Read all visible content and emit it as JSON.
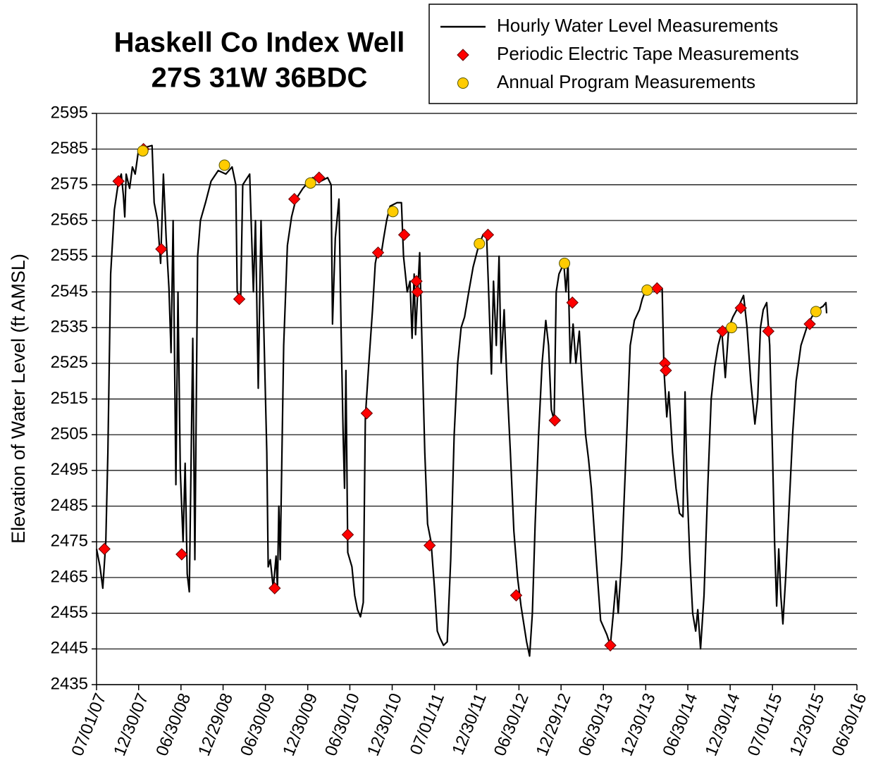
{
  "chart_data": {
    "type": "line",
    "title": [
      "Haskell Co Index Well",
      "27S 31W 36BDC"
    ],
    "y_label": "Elevation of Water Level (ft AMSL)",
    "ylim": [
      2435,
      2595
    ],
    "yticks": [
      2435,
      2445,
      2455,
      2465,
      2475,
      2485,
      2495,
      2505,
      2515,
      2525,
      2535,
      2545,
      2555,
      2565,
      2575,
      2585,
      2595
    ],
    "xlim": [
      "2007-07-01",
      "2016-06-30"
    ],
    "xticks": [
      {
        "value": "2007-07-01",
        "label": "07/01/07"
      },
      {
        "value": "2007-12-30",
        "label": "12/30/07"
      },
      {
        "value": "2008-06-30",
        "label": "06/30/08"
      },
      {
        "value": "2008-12-29",
        "label": "12/29/08"
      },
      {
        "value": "2009-06-30",
        "label": "06/30/09"
      },
      {
        "value": "2009-12-30",
        "label": "12/30/09"
      },
      {
        "value": "2010-06-30",
        "label": "06/30/10"
      },
      {
        "value": "2010-12-30",
        "label": "12/30/10"
      },
      {
        "value": "2011-07-01",
        "label": "07/01/11"
      },
      {
        "value": "2011-12-30",
        "label": "12/30/11"
      },
      {
        "value": "2012-06-30",
        "label": "06/30/12"
      },
      {
        "value": "2012-12-29",
        "label": "12/29/12"
      },
      {
        "value": "2013-06-30",
        "label": "06/30/13"
      },
      {
        "value": "2013-12-30",
        "label": "12/30/13"
      },
      {
        "value": "2014-06-30",
        "label": "06/30/14"
      },
      {
        "value": "2014-12-30",
        "label": "12/30/14"
      },
      {
        "value": "2015-07-01",
        "label": "07/01/15"
      },
      {
        "value": "2015-12-30",
        "label": "12/30/15"
      },
      {
        "value": "2016-06-30",
        "label": "06/30/16"
      }
    ],
    "grid": true,
    "legend": "top-right",
    "series": [
      {
        "name": "Hourly Water Level Measurements",
        "color": "#000000",
        "marker": "none",
        "x": [
          "2007-07-01",
          "2007-07-16",
          "2007-07-28",
          "2007-08-10",
          "2007-08-19",
          "2007-08-31",
          "2007-09-16",
          "2007-10-04",
          "2007-10-16",
          "2007-10-25",
          "2007-10-31",
          "2007-11-06",
          "2007-11-21",
          "2007-12-03",
          "2007-12-15",
          "2007-12-30",
          "2008-01-29",
          "2008-02-26",
          "2008-03-06",
          "2008-03-21",
          "2008-04-03",
          "2008-04-15",
          "2008-04-27",
          "2008-05-09",
          "2008-05-18",
          "2008-05-27",
          "2008-06-08",
          "2008-06-17",
          "2008-06-27",
          "2008-07-09",
          "2008-07-18",
          "2008-07-27",
          "2008-08-05",
          "2008-08-20",
          "2008-08-29",
          "2008-09-10",
          "2008-09-22",
          "2008-10-14",
          "2008-11-07",
          "2008-12-08",
          "2009-01-10",
          "2009-02-06",
          "2009-02-22",
          "2009-02-28",
          "2009-03-15",
          "2009-03-24",
          "2009-04-23",
          "2009-05-09",
          "2009-05-18",
          "2009-05-30",
          "2009-06-11",
          "2009-06-23",
          "2009-07-06",
          "2009-07-12",
          "2009-07-21",
          "2009-08-03",
          "2009-08-15",
          "2009-08-21",
          "2009-08-27",
          "2009-09-02",
          "2009-09-17",
          "2009-10-03",
          "2009-10-21",
          "2009-11-09",
          "2009-12-09",
          "2010-01-20",
          "2010-02-24",
          "2010-03-26",
          "2010-04-10",
          "2010-04-16",
          "2010-04-28",
          "2010-05-14",
          "2010-05-23",
          "2010-06-01",
          "2010-06-07",
          "2010-06-13",
          "2010-06-21",
          "2010-07-09",
          "2010-07-21",
          "2010-08-02",
          "2010-08-15",
          "2010-08-27",
          "2010-09-05",
          "2010-09-20",
          "2010-10-06",
          "2010-10-18",
          "2010-10-30",
          "2010-11-11",
          "2010-11-23",
          "2010-12-06",
          "2010-12-21",
          "2011-01-20",
          "2011-02-08",
          "2011-02-17",
          "2011-03-05",
          "2011-03-17",
          "2011-03-26",
          "2011-04-04",
          "2011-04-10",
          "2011-04-28",
          "2011-05-08",
          "2011-05-20",
          "2011-06-01",
          "2011-06-16",
          "2011-07-01",
          "2011-07-13",
          "2011-07-25",
          "2011-08-09",
          "2011-08-25",
          "2011-09-09",
          "2011-09-24",
          "2011-10-09",
          "2011-10-24",
          "2011-11-08",
          "2011-11-26",
          "2011-12-15",
          "2012-01-08",
          "2012-01-27",
          "2012-02-11",
          "2012-02-20",
          "2012-03-03",
          "2012-03-12",
          "2012-03-24",
          "2012-04-05",
          "2012-04-14",
          "2012-04-27",
          "2012-05-09",
          "2012-05-24",
          "2012-06-08",
          "2012-06-24",
          "2012-07-09",
          "2012-07-21",
          "2012-08-02",
          "2012-08-15",
          "2012-08-27",
          "2012-09-08",
          "2012-09-23",
          "2012-10-08",
          "2012-10-24",
          "2012-11-05",
          "2012-11-17",
          "2012-11-29",
          "2012-12-08",
          "2012-12-20",
          "2013-01-10",
          "2013-01-19",
          "2013-01-28",
          "2013-02-07",
          "2013-02-19",
          "2013-03-03",
          "2013-03-18",
          "2013-03-30",
          "2013-04-14",
          "2013-04-27",
          "2013-05-09",
          "2013-05-30",
          "2013-06-18",
          "2013-07-15",
          "2013-07-30",
          "2013-08-12",
          "2013-08-24",
          "2013-09-02",
          "2013-09-17",
          "2013-10-06",
          "2013-10-24",
          "2013-11-11",
          "2013-12-03",
          "2013-12-15",
          "2013-12-30",
          "2014-01-24",
          "2014-03-11",
          "2014-03-19",
          "2014-03-31",
          "2014-04-09",
          "2014-04-25",
          "2014-05-10",
          "2014-05-25",
          "2014-06-09",
          "2014-06-18",
          "2014-06-27",
          "2014-07-09",
          "2014-07-21",
          "2014-08-03",
          "2014-08-12",
          "2014-08-24",
          "2014-09-08",
          "2014-09-24",
          "2014-10-09",
          "2014-10-24",
          "2014-11-08",
          "2014-11-24",
          "2014-12-09",
          "2014-12-24",
          "2015-01-11",
          "2015-02-05",
          "2015-02-26",
          "2015-03-13",
          "2015-03-29",
          "2015-04-16",
          "2015-04-28",
          "2015-05-10",
          "2015-05-22",
          "2015-06-06",
          "2015-06-19",
          "2015-07-01",
          "2015-07-10",
          "2015-07-19",
          "2015-07-28",
          "2015-08-06",
          "2015-08-15",
          "2015-08-27",
          "2015-09-11",
          "2015-09-26",
          "2015-10-11",
          "2015-11-01",
          "2015-11-26",
          "2015-12-18",
          "2016-01-11",
          "2016-02-05",
          "2016-02-17",
          "2016-02-20"
        ],
        "values": [
          2473,
          2468,
          2462,
          2475,
          2500,
          2550,
          2568,
          2576,
          2578,
          2572,
          2566,
          2578,
          2574,
          2580,
          2578,
          2585,
          2585.5,
          2586,
          2570,
          2565,
          2553,
          2578,
          2560,
          2546,
          2528,
          2565,
          2491,
          2545,
          2495,
          2475,
          2497,
          2466,
          2461,
          2532,
          2470,
          2555,
          2565,
          2570,
          2576,
          2579,
          2578,
          2580,
          2575,
          2545,
          2543,
          2575,
          2578,
          2545,
          2565,
          2518,
          2565,
          2535,
          2500,
          2468,
          2470,
          2462,
          2471,
          2462,
          2485,
          2470,
          2530,
          2558,
          2566,
          2571,
          2574,
          2577,
          2576,
          2577,
          2575,
          2536,
          2560,
          2571,
          2535,
          2505,
          2490,
          2523,
          2472,
          2468,
          2460,
          2456,
          2454,
          2458,
          2510,
          2525,
          2540,
          2553,
          2557,
          2555,
          2560,
          2565,
          2569,
          2570,
          2570,
          2555,
          2545,
          2548,
          2532,
          2550,
          2533,
          2556,
          2530,
          2500,
          2480,
          2475,
          2462,
          2450,
          2448,
          2446,
          2447,
          2470,
          2505,
          2525,
          2535,
          2538,
          2545,
          2552,
          2558,
          2561,
          2561,
          2545,
          2522,
          2548,
          2530,
          2555,
          2525,
          2540,
          2520,
          2500,
          2478,
          2465,
          2457,
          2452,
          2447,
          2443,
          2455,
          2480,
          2505,
          2525,
          2537,
          2530,
          2512,
          2509,
          2545,
          2550,
          2553,
          2545,
          2553,
          2525,
          2536,
          2525,
          2534,
          2520,
          2505,
          2498,
          2490,
          2470,
          2453,
          2449,
          2446,
          2455,
          2464,
          2455,
          2470,
          2500,
          2530,
          2537,
          2540,
          2543,
          2545.5,
          2546,
          2546,
          2523,
          2510,
          2517,
          2500,
          2490,
          2483,
          2482,
          2517,
          2490,
          2470,
          2455,
          2450,
          2456,
          2445,
          2460,
          2490,
          2515,
          2524,
          2530,
          2534,
          2521,
          2535,
          2538,
          2541,
          2544,
          2535,
          2520,
          2508,
          2515,
          2535,
          2540,
          2542,
          2530,
          2500,
          2475,
          2457,
          2473,
          2460,
          2452,
          2465,
          2485,
          2505,
          2520,
          2530,
          2535,
          2538,
          2540,
          2541,
          2542,
          2539
        ]
      },
      {
        "name": "Periodic Electric Tape Measurements",
        "color": "#ff0000",
        "marker": "diamond",
        "x": [
          "2007-08-04",
          "2007-10-04",
          "2008-01-20",
          "2008-04-06",
          "2008-07-03",
          "2009-03-09",
          "2009-08-09",
          "2009-11-02",
          "2010-02-17",
          "2010-06-21",
          "2010-09-11",
          "2010-10-30",
          "2011-02-20",
          "2011-04-14",
          "2011-04-18",
          "2011-06-10",
          "2012-02-17",
          "2012-06-18",
          "2012-12-02",
          "2013-02-16",
          "2013-07-30",
          "2014-02-17",
          "2014-03-23",
          "2014-03-27",
          "2014-11-27",
          "2015-02-14",
          "2015-06-13",
          "2015-12-09"
        ],
        "values": [
          2473,
          2576,
          2585,
          2557,
          2471.5,
          2543,
          2462,
          2571,
          2577,
          2477,
          2511,
          2556,
          2561,
          2548,
          2545,
          2474,
          2561,
          2460,
          2509,
          2542,
          2446,
          2546,
          2525,
          2523,
          2534,
          2540.5,
          2534,
          2536
        ]
      },
      {
        "name": "Annual Program Measurements",
        "color": "#ffcc00",
        "marker": "circle",
        "x": [
          "2008-01-17",
          "2009-01-04",
          "2010-01-11",
          "2011-01-02",
          "2012-01-11",
          "2013-01-13",
          "2014-01-05",
          "2015-01-05",
          "2016-01-05"
        ],
        "values": [
          2584.5,
          2580.5,
          2575.5,
          2567.5,
          2558.5,
          2553,
          2545.5,
          2535,
          2539.5
        ]
      }
    ]
  }
}
